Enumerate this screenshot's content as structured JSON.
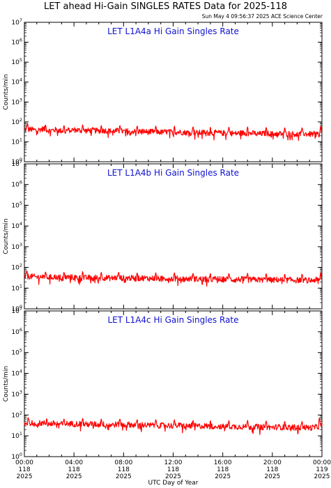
{
  "header": {
    "title": "LET ahead Hi-Gain SINGLES RATES Data for 2025-118",
    "timestamp": "Sun May  4 09:56:37 2025 ACE Science Center"
  },
  "colors": {
    "data_line": "#ff0000",
    "panel_title": "#1010d0",
    "axes": "#000000"
  },
  "chart_data": [
    {
      "type": "line",
      "title": "LET L1A4a Hi Gain Singles Rate",
      "ylabel": "Counts/min",
      "ylim": [
        1,
        10000000
      ],
      "yscale": "log",
      "y_tick_labels": [
        "10^0",
        "10^1",
        "10^2",
        "10^3",
        "10^4",
        "10^5",
        "10^6",
        "10^7"
      ],
      "xlim": [
        0,
        24
      ],
      "series": [
        {
          "x": [
            0,
            0.5,
            1,
            1.5,
            2,
            2.5,
            3,
            3.5,
            4,
            4.5,
            5,
            5.5,
            6,
            6.5,
            7,
            7.5,
            8,
            8.5,
            9,
            9.5,
            10,
            10.5,
            11,
            11.5,
            12,
            12.5,
            13,
            13.5,
            14,
            14.5,
            15,
            15.5,
            16,
            16.5,
            17,
            17.5,
            18,
            18.5,
            19,
            19.5,
            20,
            20.5,
            21,
            21.5,
            22,
            22.5,
            23,
            23.5,
            24
          ],
          "values": [
            40,
            42,
            38,
            45,
            36,
            40,
            35,
            38,
            40,
            37,
            36,
            38,
            35,
            37,
            34,
            36,
            33,
            35,
            32,
            34,
            31,
            33,
            30,
            32,
            30,
            31,
            29,
            30,
            28,
            30,
            27,
            29,
            27,
            28,
            26,
            28,
            26,
            27,
            25,
            27,
            25,
            26,
            25,
            26,
            24,
            26,
            24,
            25,
            25
          ],
          "spikes_x": [
            0.25,
            1.7,
            3.2,
            4.7,
            6.2,
            7.7,
            9.1,
            10.6,
            12.1,
            13.6,
            15.0,
            16.5,
            18.0,
            19.5,
            21.0,
            22.4,
            23.9
          ],
          "spike_values": [
            90,
            75,
            70,
            72,
            68,
            70,
            66,
            64,
            62,
            60,
            58,
            57,
            56,
            55,
            55,
            54,
            60
          ]
        }
      ]
    },
    {
      "type": "line",
      "title": "LET L1A4b Hi Gain Singles Rate",
      "ylabel": "Counts/min",
      "ylim": [
        1,
        10000000
      ],
      "yscale": "log",
      "y_tick_labels": [
        "10^0",
        "10^1",
        "10^2",
        "10^3",
        "10^4",
        "10^5",
        "10^6",
        "10^7"
      ],
      "xlim": [
        0,
        24
      ],
      "series": [
        {
          "x": [
            0,
            0.5,
            1,
            1.5,
            2,
            2.5,
            3,
            3.5,
            4,
            4.5,
            5,
            5.5,
            6,
            6.5,
            7,
            7.5,
            8,
            8.5,
            9,
            9.5,
            10,
            10.5,
            11,
            11.5,
            12,
            12.5,
            13,
            13.5,
            14,
            14.5,
            15,
            15.5,
            16,
            16.5,
            17,
            17.5,
            18,
            18.5,
            19,
            19.5,
            20,
            20.5,
            21,
            21.5,
            22,
            22.5,
            23,
            23.5,
            24
          ],
          "values": [
            35,
            37,
            34,
            36,
            33,
            35,
            32,
            34,
            33,
            32,
            31,
            33,
            31,
            32,
            30,
            32,
            30,
            31,
            29,
            31,
            29,
            30,
            28,
            30,
            28,
            29,
            27,
            29,
            27,
            28,
            26,
            28,
            26,
            27,
            25,
            27,
            25,
            26,
            25,
            26,
            24,
            26,
            24,
            25,
            24,
            25,
            23,
            25,
            24
          ],
          "spikes_x": [
            0.2,
            1.7,
            3.2,
            4.7,
            6.2,
            7.6,
            9.1,
            10.6,
            12.1,
            13.6,
            15.0,
            16.5,
            18.0,
            19.5,
            21.0,
            22.4,
            23.9
          ],
          "spike_values": [
            70,
            65,
            62,
            64,
            60,
            62,
            58,
            57,
            56,
            55,
            54,
            53,
            52,
            52,
            51,
            50,
            55
          ]
        }
      ]
    },
    {
      "type": "line",
      "title": "LET L1A4c Hi Gain Singles Rate",
      "ylabel": "Counts/min",
      "ylim": [
        1,
        10000000
      ],
      "yscale": "log",
      "y_tick_labels": [
        "10^0",
        "10^1",
        "10^2",
        "10^3",
        "10^4",
        "10^5",
        "10^6",
        "10^7"
      ],
      "xlim": [
        0,
        24
      ],
      "xlabel": "UTC Day of Year",
      "x_ticks": [
        {
          "time": "00:00",
          "doy": "118",
          "year": "2025"
        },
        {
          "time": "04:00",
          "doy": "118",
          "year": "2025"
        },
        {
          "time": "08:00",
          "doy": "118",
          "year": "2025"
        },
        {
          "time": "12:00",
          "doy": "118",
          "year": "2025"
        },
        {
          "time": "16:00",
          "doy": "118",
          "year": "2025"
        },
        {
          "time": "20:00",
          "doy": "118",
          "year": "2025"
        },
        {
          "time": "00:00",
          "doy": "119",
          "year": "2025"
        }
      ],
      "series": [
        {
          "x": [
            0,
            0.5,
            1,
            1.5,
            2,
            2.5,
            3,
            3.5,
            4,
            4.5,
            5,
            5.5,
            6,
            6.5,
            7,
            7.5,
            8,
            8.5,
            9,
            9.5,
            10,
            10.5,
            11,
            11.5,
            12,
            12.5,
            13,
            13.5,
            14,
            14.5,
            15,
            15.5,
            16,
            16.5,
            17,
            17.5,
            18,
            18.5,
            19,
            19.5,
            20,
            20.5,
            21,
            21.5,
            22,
            22.5,
            23,
            23.5,
            24
          ],
          "values": [
            40,
            42,
            39,
            41,
            37,
            40,
            36,
            39,
            37,
            38,
            35,
            37,
            34,
            36,
            33,
            36,
            33,
            35,
            32,
            34,
            31,
            33,
            31,
            32,
            30,
            32,
            29,
            31,
            29,
            30,
            28,
            30,
            27,
            29,
            27,
            28,
            26,
            28,
            26,
            27,
            25,
            27,
            25,
            26,
            25,
            26,
            24,
            26,
            30
          ],
          "spikes_x": [
            0.3,
            1.8,
            3.2,
            4.7,
            6.2,
            7.7,
            9.1,
            10.6,
            12.1,
            13.6,
            15.0,
            16.5,
            18.0,
            19.5,
            21.0,
            22.4,
            23.8
          ],
          "spike_values": [
            80,
            72,
            68,
            70,
            66,
            68,
            64,
            62,
            60,
            58,
            57,
            56,
            55,
            54,
            53,
            52,
            75
          ]
        }
      ]
    }
  ]
}
